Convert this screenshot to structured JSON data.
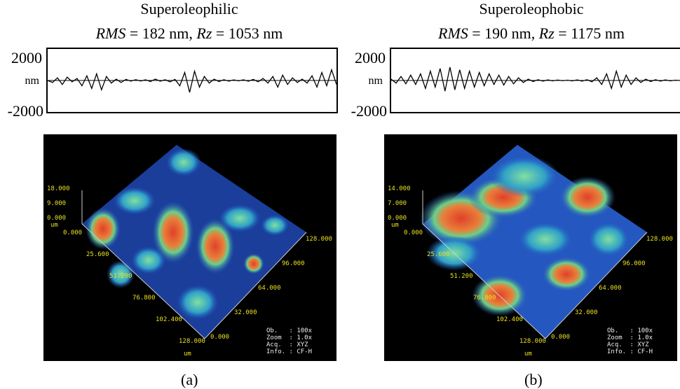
{
  "panels": [
    {
      "title": "Superoleophilic",
      "rms_label": "RMS",
      "rms": " = 182 nm, ",
      "rz_label": "Rz",
      "rz": " = 1053 nm",
      "y_top": "2000",
      "y_mid": "nm",
      "y_bot": "-2000",
      "z_ticks": [
        "18.000",
        "9.000",
        "0.000"
      ],
      "z_unit": "um",
      "x_ticks": [
        "0.000",
        "25.600",
        "51.200",
        "76.800",
        "102.400",
        "128.000"
      ],
      "x_unit": "um",
      "y_ticks": [
        "0.000",
        "32.000",
        "64.000",
        "96.000",
        "128.000"
      ],
      "info": [
        "Ob.   : 100x",
        "Zoom  : 1.0x",
        "Acq.  : XYZ",
        "Info. : CF-H"
      ],
      "caption": "(a)",
      "profile_nm": [
        0,
        -150,
        200,
        -300,
        250,
        -100,
        150,
        -400,
        350,
        -600,
        500,
        -700,
        300,
        -200,
        100,
        -150,
        80,
        -50,
        60,
        -40,
        50,
        -80,
        100,
        -60,
        50,
        -100,
        80,
        -400,
        600,
        -900,
        700,
        -500,
        300,
        -200,
        100,
        -80,
        60,
        -50,
        40,
        -30,
        50,
        -60,
        80,
        -100,
        150,
        -200,
        300,
        -500,
        400,
        -300,
        200,
        -150,
        100,
        -200,
        350,
        -500,
        600,
        -400,
        800,
        -300
      ]
    },
    {
      "title": "Superoleophobic",
      "rms_label": "RMS",
      "rms": " = 190 nm, ",
      "rz_label": "Rz",
      "rz": " = 1175 nm",
      "y_top": "2000",
      "y_mid": "nm",
      "y_bot": "-2000",
      "z_ticks": [
        "14.000",
        "7.000",
        "0.000"
      ],
      "z_unit": "um",
      "x_ticks": [
        "0.000",
        "25.600",
        "51.200",
        "76.800",
        "102.400",
        "128.000"
      ],
      "x_unit": "um",
      "y_ticks": [
        "0.000",
        "32.000",
        "64.000",
        "96.000",
        "128.000"
      ],
      "info": [
        "Ob.   : 100x",
        "Zoom  : 1.0x",
        "Acq.  : XYZ",
        "Info. : CF-H"
      ],
      "caption": "(b)",
      "profile_nm": [
        100,
        -200,
        300,
        -250,
        400,
        -300,
        500,
        -600,
        700,
        -500,
        900,
        -800,
        1000,
        -700,
        800,
        -600,
        700,
        -500,
        600,
        -400,
        500,
        -300,
        400,
        -350,
        300,
        -250,
        200,
        -150,
        100,
        -80,
        60,
        -50,
        40,
        -30,
        30,
        -20,
        20,
        -30,
        40,
        -50,
        60,
        -100,
        200,
        -300,
        500,
        -600,
        700,
        -500,
        400,
        -300,
        200,
        -150,
        100,
        -80,
        60,
        -50,
        40,
        -30,
        20,
        0
      ]
    }
  ]
}
